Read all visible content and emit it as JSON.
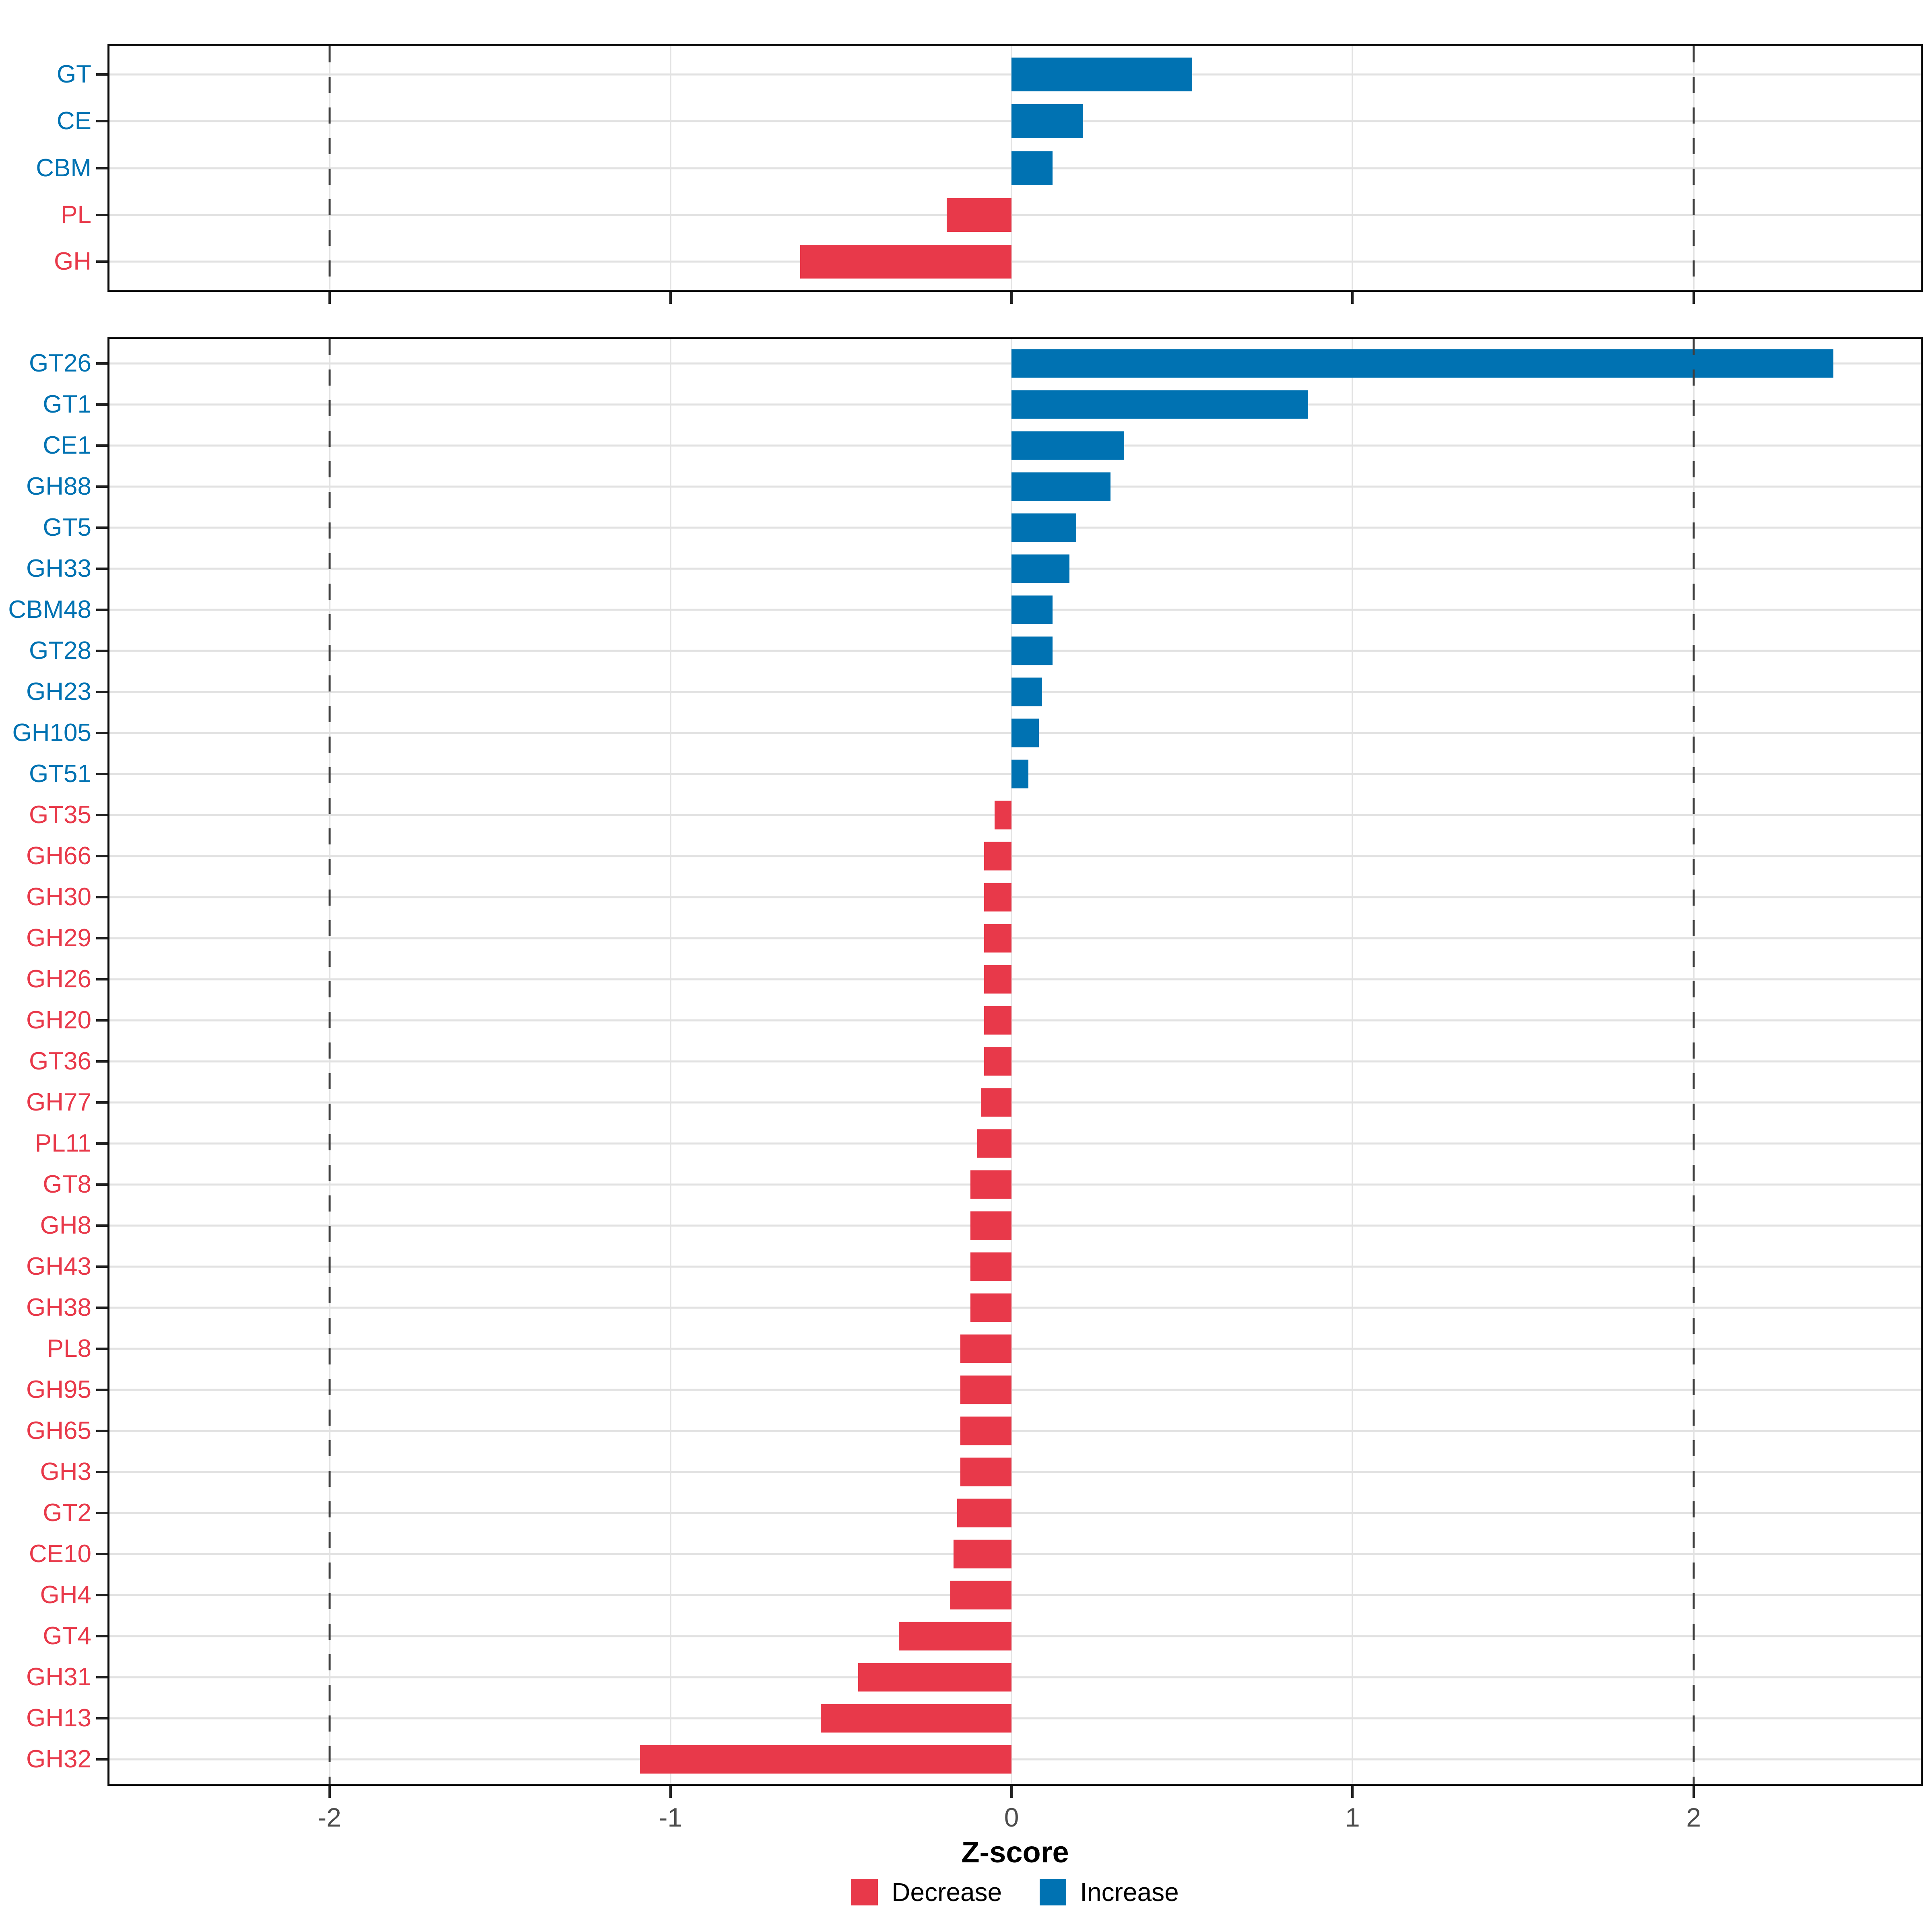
{
  "axis": {
    "title": "Z-score",
    "tick_values": [
      -2,
      -1,
      0,
      1,
      2
    ],
    "tick_labels": [
      "-2",
      "-1",
      "0",
      "1",
      "2"
    ],
    "dashed_guides": [
      -2,
      2
    ],
    "xlim": [
      -2.645,
      2.666
    ]
  },
  "legend": {
    "items": [
      {
        "label": "Decrease",
        "key": "decrease"
      },
      {
        "label": "Increase",
        "key": "increase"
      }
    ]
  },
  "colors": {
    "increase": "#0072B2",
    "decrease": "#E8394A",
    "grid": "#E2E2E2",
    "dashed_guide": "#3F3F3F",
    "tick_label": "#4D4D4D",
    "panel_border": "#0D0D0D"
  },
  "chart_data": [
    {
      "id": "top",
      "type": "bar",
      "orientation": "horizontal",
      "title": "",
      "xlabel": "",
      "ylabel": "",
      "grid": true,
      "legend_position": "none",
      "show_x_tick_labels": false,
      "xlim": [
        -2.645,
        2.666
      ],
      "categories": [
        "GT",
        "CE",
        "CBM",
        "PL",
        "GH"
      ],
      "values": [
        0.53,
        0.21,
        0.12,
        -0.19,
        -0.62
      ]
    },
    {
      "id": "bottom",
      "type": "bar",
      "orientation": "horizontal",
      "title": "",
      "xlabel": "Z-score",
      "ylabel": "",
      "grid": true,
      "legend_position": "bottom",
      "show_x_tick_labels": true,
      "xlim": [
        -2.645,
        2.666
      ],
      "categories": [
        "GT26",
        "GT1",
        "CE1",
        "GH88",
        "GT5",
        "GH33",
        "CBM48",
        "GT28",
        "GH23",
        "GH105",
        "GT51",
        "GT35",
        "GH66",
        "GH30",
        "GH29",
        "GH26",
        "GH20",
        "GT36",
        "GH77",
        "PL11",
        "GT8",
        "GH8",
        "GH43",
        "GH38",
        "PL8",
        "GH95",
        "GH65",
        "GH3",
        "GT2",
        "CE10",
        "GH4",
        "GT4",
        "GH31",
        "GH13",
        "GH32"
      ],
      "values": [
        2.41,
        0.87,
        0.33,
        0.29,
        0.19,
        0.17,
        0.12,
        0.12,
        0.09,
        0.08,
        0.05,
        -0.05,
        -0.08,
        -0.08,
        -0.08,
        -0.08,
        -0.08,
        -0.08,
        -0.09,
        -0.1,
        -0.12,
        -0.12,
        -0.12,
        -0.12,
        -0.15,
        -0.15,
        -0.15,
        -0.15,
        -0.16,
        -0.17,
        -0.18,
        -0.33,
        -0.45,
        -0.56,
        -1.09
      ]
    }
  ]
}
